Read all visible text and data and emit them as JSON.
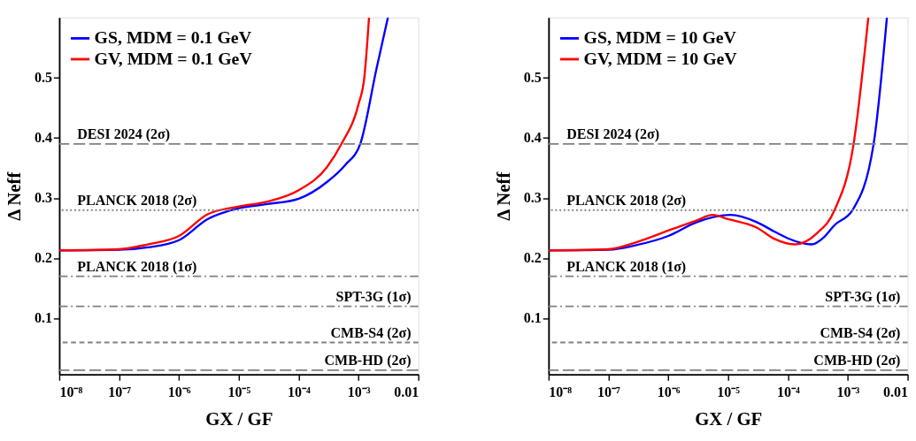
{
  "chart_data": [
    {
      "type": "line",
      "xlabel": "GX / GF",
      "ylabel": "Δ Neff",
      "log": "x",
      "legend": "top left",
      "grid": false,
      "xlim": [
        1e-08,
        0.01
      ],
      "xticks": [
        {
          "value": 1e-08,
          "label": "10⁻⁸"
        },
        {
          "value": 1e-07,
          "label": "10⁻⁷"
        },
        {
          "value": 1e-06,
          "label": "10⁻⁶"
        },
        {
          "value": 1e-05,
          "label": "10⁻⁵"
        },
        {
          "value": 0.0001,
          "label": "10⁻⁴"
        },
        {
          "value": 0.001,
          "label": "10⁻³"
        },
        0.01
      ],
      "ylim": [
        0.007,
        0.6
      ],
      "yticks": [
        0.1,
        0.2,
        0.3,
        0.4,
        0.5
      ],
      "series": [
        {
          "name": "GS, MDM = 0.1 GeV",
          "color": "#0000ff",
          "x": [
            1e-08,
            1e-07,
            3e-07,
            1e-06,
            3e-06,
            1e-05,
            3e-05,
            0.0001,
            0.0003,
            0.0006,
            0.00107,
            0.002,
            0.0031
          ],
          "values": [
            0.213,
            0.214,
            0.218,
            0.23,
            0.265,
            0.283,
            0.29,
            0.299,
            0.327,
            0.355,
            0.39,
            0.515,
            0.6
          ]
        },
        {
          "name": "GV, MDM = 0.1 GeV",
          "color": "#ff0000",
          "x": [
            1e-08,
            1e-07,
            3e-07,
            1e-06,
            3e-06,
            1e-05,
            3e-05,
            0.0001,
            0.0003,
            0.00052,
            0.001,
            0.00125,
            0.0015
          ],
          "values": [
            0.213,
            0.215,
            0.223,
            0.237,
            0.273,
            0.286,
            0.294,
            0.313,
            0.352,
            0.39,
            0.456,
            0.5,
            0.6
          ]
        }
      ],
      "ref_lines": [
        {
          "axis": "y",
          "value": 0.39,
          "label": "DESI 2024 (2σ)",
          "color": "#808080",
          "line_style": "longdashed"
        },
        {
          "axis": "y",
          "value": 0.28,
          "label": "PLANCK 2018 (2σ)",
          "color": "#808080",
          "line_style": "dotted"
        },
        {
          "axis": "y",
          "value": 0.17,
          "label": "PLANCK 2018 (1σ)",
          "color": "#808080",
          "line_style": "dashdot"
        },
        {
          "axis": "y",
          "value": 0.12,
          "label": "SPT-3G (1σ)",
          "color": "#808080",
          "line_style": "dashdot"
        },
        {
          "axis": "y",
          "value": 0.06,
          "label": "CMB-S4 (2σ)",
          "color": "#808080",
          "line_style": "dashed"
        },
        {
          "axis": "y",
          "value": 0.014,
          "label": "CMB-HD (2σ)",
          "color": "#808080",
          "line_style": "longdashed"
        }
      ]
    },
    {
      "type": "line",
      "xlabel": "GX / GF",
      "ylabel": "Δ Neff",
      "log": "x",
      "legend": "top left",
      "grid": false,
      "xlim": [
        1e-08,
        0.01
      ],
      "xticks": [
        {
          "value": 1e-08,
          "label": "10⁻⁸"
        },
        {
          "value": 1e-07,
          "label": "10⁻⁷"
        },
        {
          "value": 1e-06,
          "label": "10⁻⁶"
        },
        {
          "value": 1e-05,
          "label": "10⁻⁵"
        },
        {
          "value": 0.0001,
          "label": "10⁻⁴"
        },
        {
          "value": 0.001,
          "label": "10⁻³"
        },
        0.01
      ],
      "ylim": [
        0.007,
        0.6
      ],
      "yticks": [
        0.1,
        0.2,
        0.3,
        0.4,
        0.5
      ],
      "series": [
        {
          "name": "GS, MDM = 10 GeV",
          "color": "#0000ff",
          "x": [
            1e-08,
            1e-07,
            3e-07,
            1e-06,
            3e-06,
            1.1e-05,
            3e-05,
            6e-05,
            0.0001,
            0.00025,
            0.0004,
            0.0006,
            0.0012,
            0.0027,
            0.0045
          ],
          "values": [
            0.213,
            0.214,
            0.222,
            0.237,
            0.26,
            0.272,
            0.26,
            0.244,
            0.233,
            0.223,
            0.235,
            0.255,
            0.28,
            0.39,
            0.6
          ]
        },
        {
          "name": "GV, MDM = 10 GeV",
          "color": "#ff0000",
          "x": [
            1e-08,
            1e-07,
            3e-07,
            1e-06,
            3e-06,
            5.5e-06,
            1e-05,
            3e-05,
            6e-05,
            0.00013,
            0.0003,
            0.0006,
            0.00125,
            0.0022
          ],
          "values": [
            0.213,
            0.215,
            0.227,
            0.246,
            0.263,
            0.272,
            0.265,
            0.251,
            0.232,
            0.223,
            0.241,
            0.28,
            0.39,
            0.6
          ]
        }
      ],
      "ref_lines": [
        {
          "axis": "y",
          "value": 0.39,
          "label": "DESI 2024 (2σ)",
          "color": "#808080",
          "line_style": "longdashed"
        },
        {
          "axis": "y",
          "value": 0.28,
          "label": "PLANCK 2018 (2σ)",
          "color": "#808080",
          "line_style": "dotted"
        },
        {
          "axis": "y",
          "value": 0.17,
          "label": "PLANCK 2018 (1σ)",
          "color": "#808080",
          "line_style": "dashdot"
        },
        {
          "axis": "y",
          "value": 0.12,
          "label": "SPT-3G (1σ)",
          "color": "#808080",
          "line_style": "dashdot"
        },
        {
          "axis": "y",
          "value": 0.06,
          "label": "CMB-S4 (2σ)",
          "color": "#808080",
          "line_style": "dashed"
        },
        {
          "axis": "y",
          "value": 0.014,
          "label": "CMB-HD (2σ)",
          "color": "#808080",
          "line_style": "longdashed"
        }
      ]
    }
  ]
}
